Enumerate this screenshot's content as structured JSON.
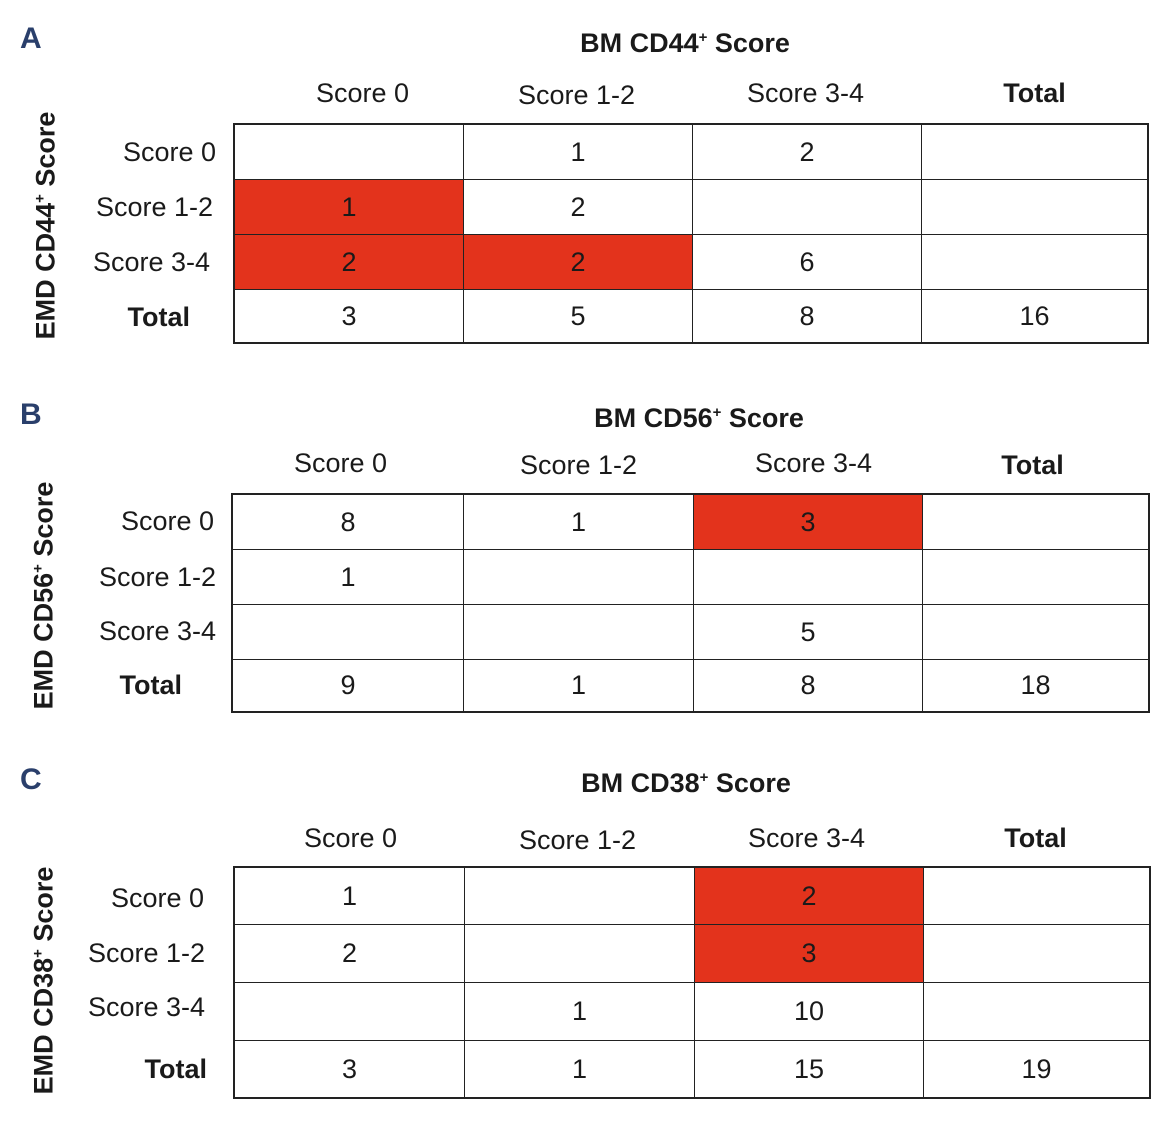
{
  "chart_data": [
    {
      "type": "table",
      "panel": "A",
      "title_main": "BM CD44",
      "title_sup": "+",
      "title_end": " Score",
      "ylabel_main": "EMD CD44",
      "ylabel_sup": "+",
      "ylabel_end": " Score",
      "columns": [
        "Score 0",
        "Score 1-2",
        "Score 3-4",
        "Total"
      ],
      "rows": [
        "Score 0",
        "Score 1-2",
        "Score 3-4",
        "Total"
      ],
      "cells": [
        [
          "",
          "1",
          "2",
          ""
        ],
        [
          "1",
          "2",
          "",
          ""
        ],
        [
          "2",
          "2",
          "6",
          ""
        ],
        [
          "3",
          "5",
          "8",
          "16"
        ]
      ],
      "highlighted": [
        [
          1,
          0
        ],
        [
          2,
          0
        ],
        [
          2,
          1
        ]
      ],
      "highlight_color": "#e3331c"
    },
    {
      "type": "table",
      "panel": "B",
      "title_main": "BM CD56",
      "title_sup": "+",
      "title_end": " Score",
      "ylabel_main": "EMD CD56",
      "ylabel_sup": "+",
      "ylabel_end": " Score",
      "columns": [
        "Score 0",
        "Score 1-2",
        "Score 3-4",
        "Total"
      ],
      "rows": [
        "Score 0",
        "Score 1-2",
        "Score 3-4",
        "Total"
      ],
      "cells": [
        [
          "8",
          "1",
          "3",
          ""
        ],
        [
          "1",
          "",
          "",
          ""
        ],
        [
          "",
          "",
          "5",
          ""
        ],
        [
          "9",
          "1",
          "8",
          "18"
        ]
      ],
      "highlighted": [
        [
          0,
          2
        ]
      ],
      "highlight_color": "#e3331c"
    },
    {
      "type": "table",
      "panel": "C",
      "title_main": "BM CD38",
      "title_sup": "+",
      "title_end": " Score",
      "ylabel_main": "EMD CD38",
      "ylabel_sup": "+",
      "ylabel_end": " Score",
      "columns": [
        "Score 0",
        "Score 1-2",
        "Score 3-4",
        "Total"
      ],
      "rows": [
        "Score 0",
        "Score 1-2",
        "Score 3-4",
        "Total"
      ],
      "cells": [
        [
          "1",
          "",
          "2",
          ""
        ],
        [
          "2",
          "",
          "3",
          ""
        ],
        [
          "",
          "1",
          "10",
          ""
        ],
        [
          "3",
          "1",
          "15",
          "19"
        ]
      ],
      "highlighted": [
        [
          0,
          2
        ],
        [
          1,
          2
        ]
      ],
      "highlight_color": "#e3331c"
    }
  ]
}
